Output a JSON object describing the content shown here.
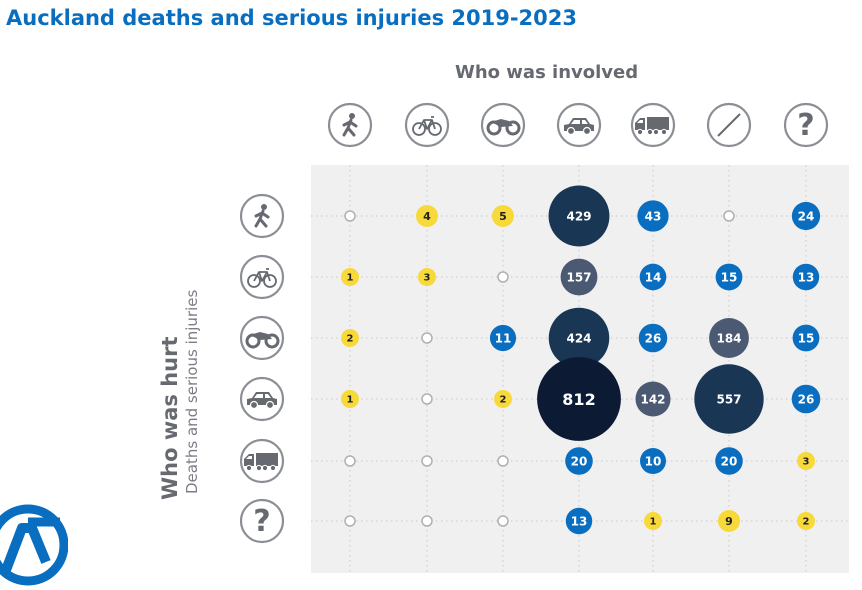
{
  "title": "Auckland deaths and serious injuries 2019-2023",
  "column_header": "Who was involved",
  "row_header": {
    "main": "Who was hurt",
    "sub": "Deaths and serious injuries"
  },
  "colors": {
    "title_blue": "#0a6ec0",
    "yellow": "#f8d93a",
    "blue": "#0a6ec0",
    "slate": "#4b5a72",
    "navy": "#1a3655",
    "darkest": "#0d1a33",
    "gray": "#666a70",
    "zero": "#b0b0b0"
  },
  "chart_data": {
    "type": "bubble-matrix",
    "title": "Auckland deaths and serious injuries 2019-2023",
    "x_header": "Who was involved",
    "y_header": "Who was hurt",
    "y_subheader": "Deaths and serious injuries",
    "columns": [
      {
        "icon": "pedestrian-icon"
      },
      {
        "icon": "bicycle-icon"
      },
      {
        "icon": "motorcycle-icon"
      },
      {
        "icon": "car-icon"
      },
      {
        "icon": "truck-icon"
      },
      {
        "icon": "none-icon"
      },
      {
        "icon": "unknown-icon"
      }
    ],
    "rows": [
      {
        "icon": "pedestrian-icon",
        "values": [
          0,
          4,
          5,
          429,
          43,
          0,
          24
        ]
      },
      {
        "icon": "bicycle-icon",
        "values": [
          1,
          3,
          0,
          157,
          14,
          15,
          13
        ]
      },
      {
        "icon": "motorcycle-icon",
        "values": [
          2,
          0,
          11,
          424,
          26,
          184,
          15
        ]
      },
      {
        "icon": "car-icon",
        "values": [
          1,
          0,
          2,
          812,
          142,
          557,
          26
        ]
      },
      {
        "icon": "truck-icon",
        "values": [
          0,
          0,
          0,
          20,
          10,
          20,
          3
        ]
      },
      {
        "icon": "unknown-icon",
        "values": [
          0,
          0,
          0,
          13,
          1,
          9,
          2
        ]
      }
    ]
  }
}
